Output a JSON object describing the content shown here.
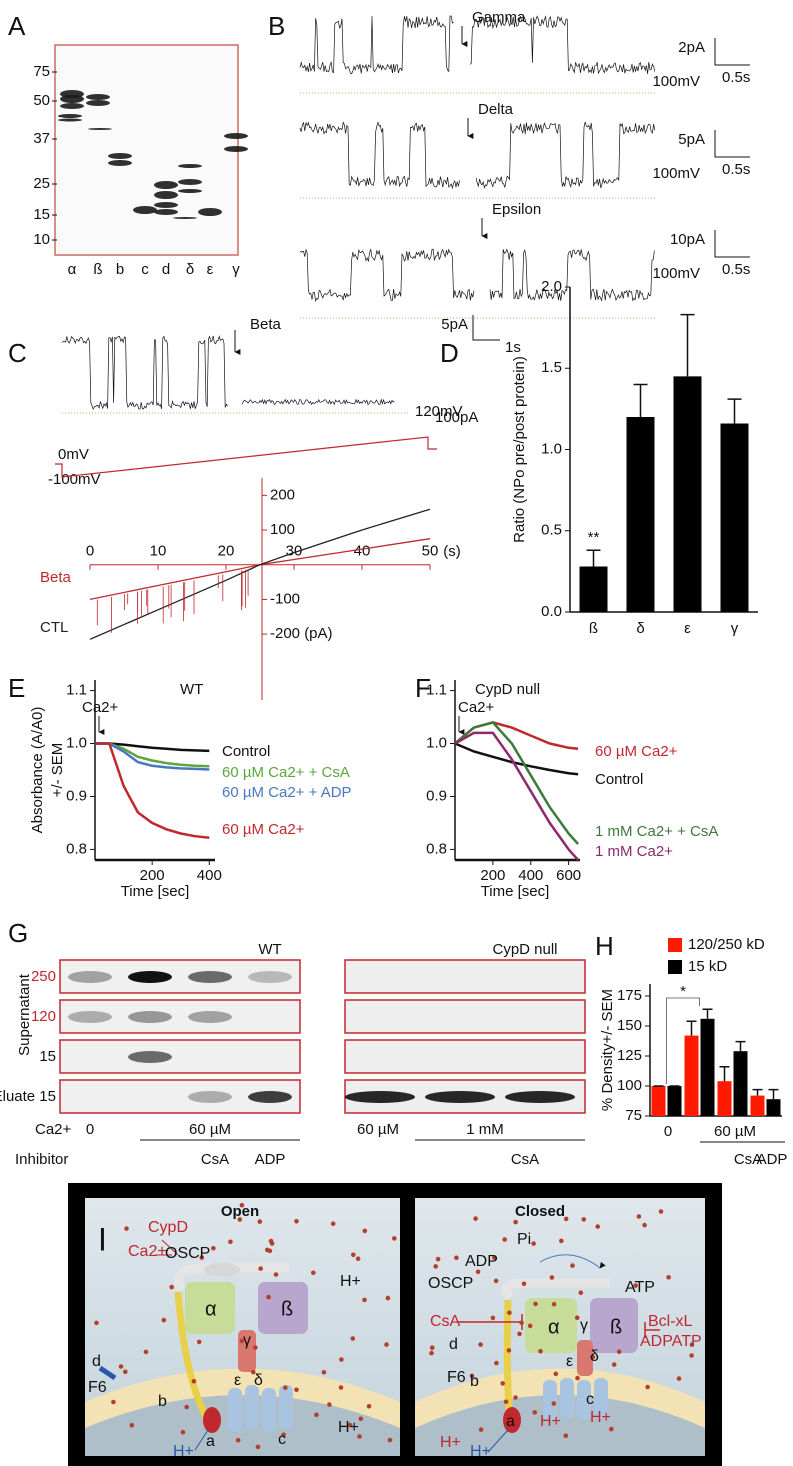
{
  "panels": {
    "A": {
      "label": "A",
      "ladder": [
        "75",
        "50",
        "37",
        "25",
        "15",
        "10"
      ],
      "lanes": [
        "α",
        "ß",
        "b",
        "c",
        "d",
        "δ",
        "ε",
        "γ"
      ]
    },
    "B": {
      "label": "B",
      "traces": [
        {
          "name": "Gamma",
          "current_scale": "2pA",
          "time_scale": "0.5s",
          "voltage": "100mV"
        },
        {
          "name": "Delta",
          "current_scale": "5pA",
          "time_scale": "0.5s",
          "voltage": "100mV"
        },
        {
          "name": "Epsilon",
          "current_scale": "10pA",
          "time_scale": "0.5s",
          "voltage": "100mV"
        }
      ]
    },
    "C": {
      "label": "C",
      "trace": {
        "name": "Beta",
        "current_scale": "5pA",
        "time_scale": "1s",
        "voltage": "120mV"
      },
      "ramp": [
        "0mV",
        "-100mV",
        "100pA"
      ]
    },
    "G": {
      "label": "G",
      "groups": [
        "WT",
        "CypD null"
      ],
      "row_title": "Supernatant",
      "rows": [
        "250",
        "120",
        "15",
        "Eluate 15"
      ],
      "ca_label": "Ca2+",
      "ca": [
        "0",
        "60 µM",
        "60 µM",
        "1 mM"
      ],
      "inhibitor_label": "Inhibitor",
      "inhibitors": [
        "CsA",
        "ADP",
        "CsA"
      ]
    },
    "I": {
      "label": "I",
      "open": {
        "title": "Open",
        "labels": [
          "CypD",
          "Ca2+",
          "OSCP",
          "α",
          "ß",
          "H+",
          "γ",
          "d",
          "F6",
          "b",
          "ε",
          "δ",
          "a",
          "c",
          "H+",
          "H+"
        ]
      },
      "closed": {
        "title": "Closed",
        "labels": [
          "Pi",
          "ADP",
          "OSCP",
          "ATP",
          "CsA",
          "α",
          "γ",
          "ß",
          "Bcl-xL",
          "ADPATP",
          "d",
          "F6",
          "b",
          "ε",
          "δ",
          "c",
          "a",
          "H+",
          "H+",
          "H+",
          "H+"
        ]
      }
    }
  },
  "chart_data": [
    {
      "type": "line",
      "xlabel": "(s)",
      "x": [
        0,
        10,
        20,
        25,
        30,
        40,
        50
      ],
      "xlim": [
        0,
        50
      ],
      "xticks": [
        0,
        10,
        20,
        30,
        40,
        50
      ],
      "ylim": [
        -390,
        250
      ],
      "yticks": [
        200,
        100,
        -100,
        {
          "value": -200,
          "label": "-200 (pA)"
        }
      ],
      "series": [
        {
          "name": "Beta",
          "color": "#c0282d",
          "values": [
            -100,
            -60,
            -20,
            0,
            15,
            45,
            75
          ]
        },
        {
          "name": "CTL",
          "color": "#222222",
          "values": [
            -215,
            -130,
            -45,
            0,
            35,
            100,
            160
          ]
        }
      ]
    },
    {
      "type": "bar",
      "panel": "D",
      "ylabel": "Ratio (NPo pre/post protein)",
      "categories": [
        "ß",
        "δ",
        "ε",
        "γ"
      ],
      "values": [
        0.28,
        1.2,
        1.45,
        1.16
      ],
      "errors": [
        0.1,
        0.2,
        0.38,
        0.15
      ],
      "color": "#000000",
      "annotation": "**",
      "ylim": [
        0,
        2
      ],
      "yticks": [
        {
          "value": 0,
          "label": "0.0"
        },
        0.5,
        {
          "value": 1,
          "label": "1.0"
        },
        1.5,
        {
          "value": 2,
          "label": "2.0"
        }
      ]
    },
    {
      "type": "line",
      "panel": "E",
      "title": "WT",
      "annotation": "Ca2+",
      "ylabel": [
        "Absorbance (A/A0)",
        "+/- SEM"
      ],
      "xlabel": "Time [sec]",
      "x": [
        0,
        50,
        100,
        150,
        200,
        250,
        300,
        350,
        400
      ],
      "xlim": [
        0,
        420
      ],
      "xticks": [
        200,
        400
      ],
      "ylim": [
        0.78,
        1.12
      ],
      "yticks": [
        0.8,
        0.9,
        {
          "value": 1,
          "label": "1.0"
        },
        1.1
      ],
      "series": [
        {
          "name": "Control",
          "color": "#111111",
          "values": [
            1.0,
            1.0,
            0.998,
            0.995,
            0.992,
            0.99,
            0.988,
            0.987,
            0.986
          ]
        },
        {
          "name": "60 µM Ca2+ + CsA",
          "color": "#5aa83c",
          "values": [
            1.0,
            1.0,
            0.99,
            0.975,
            0.968,
            0.963,
            0.96,
            0.958,
            0.957
          ]
        },
        {
          "name": "60 µM Ca2+ + ADP",
          "color": "#4a78c0",
          "values": [
            1.0,
            1.0,
            0.985,
            0.965,
            0.958,
            0.955,
            0.953,
            0.952,
            0.951
          ]
        },
        {
          "name": "60 µM Ca2+",
          "color": "#c0282d",
          "values": [
            1.0,
            1.0,
            0.92,
            0.87,
            0.85,
            0.838,
            0.83,
            0.825,
            0.822
          ]
        }
      ]
    },
    {
      "type": "line",
      "panel": "F",
      "title": "CypD null",
      "annotation": "Ca2+",
      "xlabel": "Time [sec]",
      "x": [
        0,
        100,
        200,
        300,
        400,
        500,
        600,
        650
      ],
      "xlim": [
        0,
        660
      ],
      "xticks": [
        200,
        400,
        600
      ],
      "ylim": [
        0.78,
        1.12
      ],
      "yticks": [
        0.8,
        0.9,
        {
          "value": 1,
          "label": "1.0"
        },
        1.1
      ],
      "series": [
        {
          "name": "60 µM Ca2+",
          "color": "#c0282d",
          "values": [
            1.0,
            1.03,
            1.04,
            1.03,
            1.015,
            1.0,
            0.992,
            0.99
          ]
        },
        {
          "name": "Control",
          "color": "#111111",
          "values": [
            1.0,
            0.985,
            0.975,
            0.965,
            0.957,
            0.95,
            0.944,
            0.942
          ]
        },
        {
          "name": "1 mM Ca2+ + CsA",
          "color": "#3d7a3a",
          "values": [
            1.0,
            1.03,
            1.04,
            1.0,
            0.94,
            0.88,
            0.83,
            0.81
          ]
        },
        {
          "name": "1 mM Ca2+",
          "color": "#8e2a6a",
          "values": [
            1.0,
            1.02,
            1.02,
            0.97,
            0.91,
            0.85,
            0.8,
            0.78
          ]
        }
      ]
    },
    {
      "type": "grouped_bar",
      "panel": "H",
      "ylabel": "% Density+/- SEM",
      "categories": [
        null,
        null,
        null,
        null
      ],
      "x_labels": [
        "0",
        "60 µM",
        "CsA",
        "ADP"
      ],
      "annotation": "*",
      "ylim": [
        75,
        185
      ],
      "yticks": [
        75,
        100,
        125,
        150,
        175
      ],
      "series": [
        {
          "name": "120/250 kD",
          "color": "#ff1a00",
          "values": [
            100,
            142,
            104,
            92
          ],
          "errors": [
            0,
            12,
            12,
            5
          ]
        },
        {
          "name": "15 kD",
          "color": "#000000",
          "values": [
            100,
            156,
            129,
            89
          ],
          "errors": [
            0,
            8,
            8,
            8
          ]
        }
      ]
    }
  ]
}
